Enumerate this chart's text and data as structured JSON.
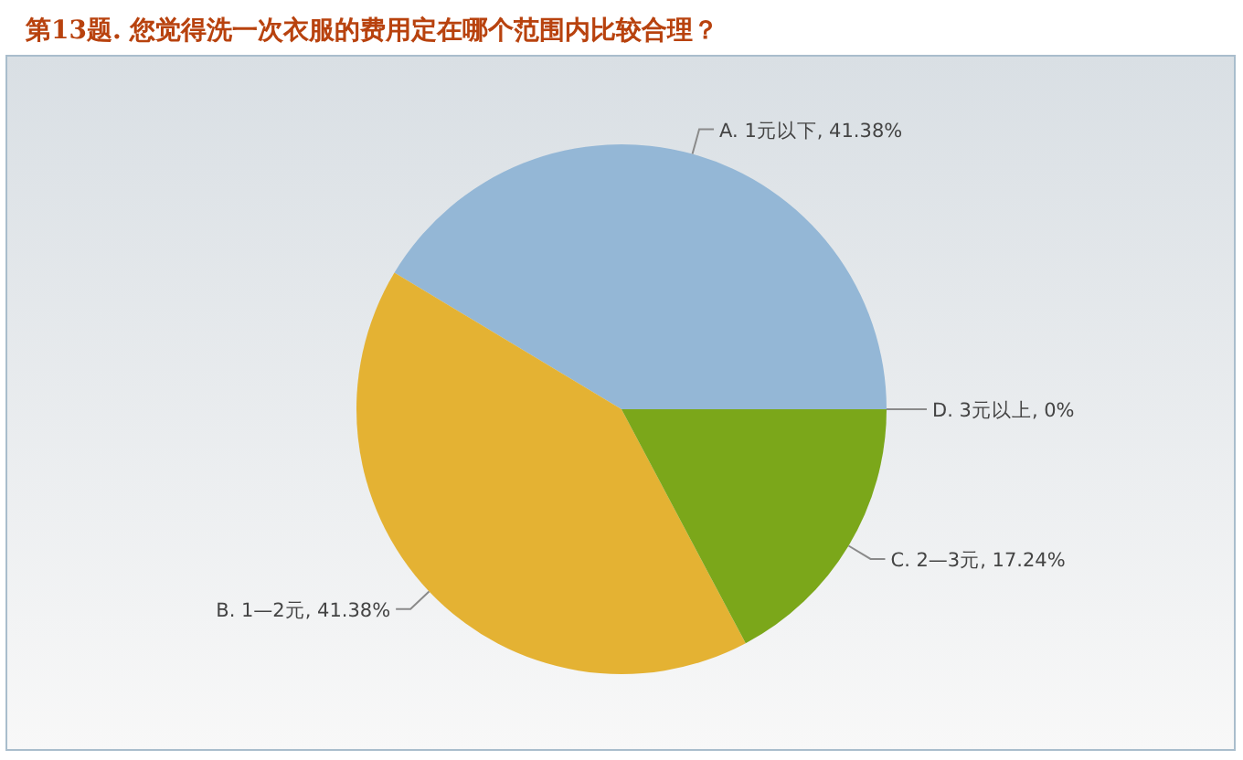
{
  "chart_data": {
    "type": "pie",
    "title": "第13题. 您觉得洗一次衣服的费用定在哪个范围内比较合理？",
    "categories": [
      "A. 1元以下",
      "B. 1—2元",
      "C. 2—3元",
      "D. 3元以上"
    ],
    "values": [
      41.38,
      41.38,
      17.24,
      0
    ],
    "colors": [
      "#94b7d6",
      "#e4b233",
      "#7ba71a",
      null
    ],
    "value_labels": [
      ", 41.38%",
      ", 41.38%",
      ", 17.24%",
      ", 0%"
    ]
  }
}
